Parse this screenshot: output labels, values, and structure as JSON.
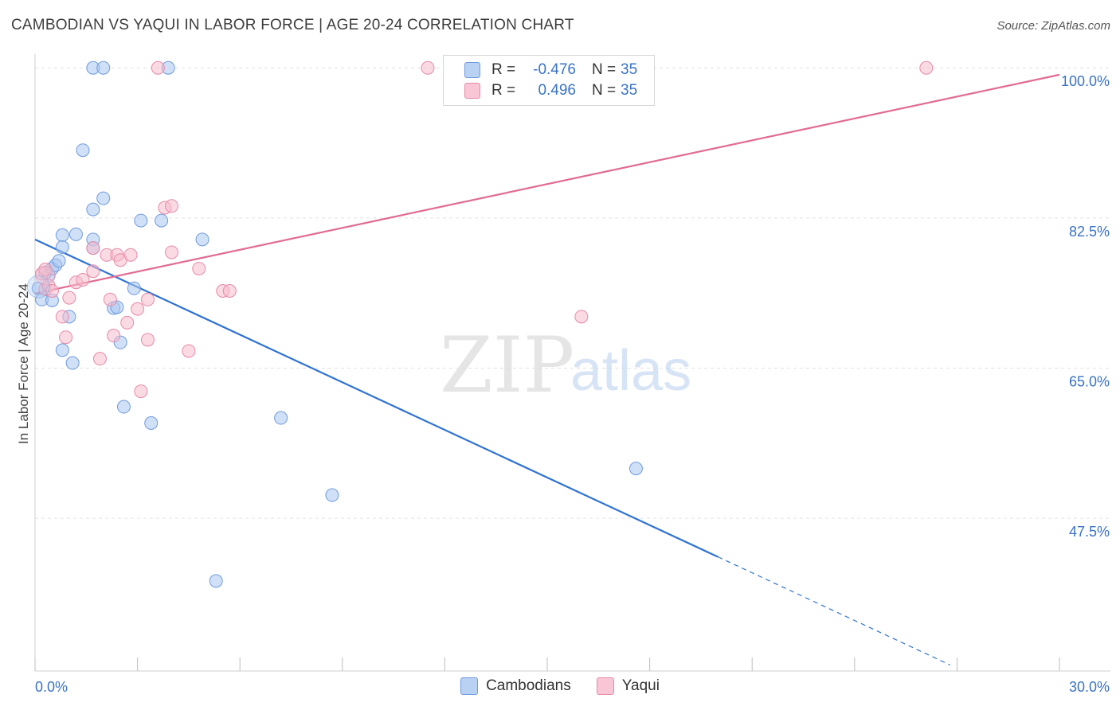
{
  "title": "CAMBODIAN VS YAQUI IN LABOR FORCE | AGE 20-24 CORRELATION CHART",
  "source": "Source: ZipAtlas.com",
  "watermark": {
    "zip": "ZIP",
    "atlas": "atlas"
  },
  "colors": {
    "blue": "#3a73c6",
    "blue_fill": "#aac6ef",
    "blue_line": "#2f72d3",
    "pink": "#e26b94",
    "pink_fill": "#f6bccc",
    "grid": "#e2e2e2",
    "axis_text": "#3a73c6"
  },
  "legend": {
    "rows": [
      {
        "r_label": "R =",
        "r_value": "-0.476",
        "n_label": "N =",
        "n_value": "35",
        "series": "blue"
      },
      {
        "r_label": "R =",
        "r_value": "0.496",
        "n_label": "N =",
        "n_value": "35",
        "series": "pink"
      }
    ]
  },
  "bottom_legend": [
    "Cambodians",
    "Yaqui"
  ],
  "chart_data": {
    "type": "scatter",
    "title": "CAMBODIAN VS YAQUI IN LABOR FORCE | AGE 20-24 CORRELATION CHART",
    "ylabel": "In Labor Force | Age 20-24",
    "xlabel": "",
    "xlim": [
      0,
      30
    ],
    "ylim": [
      29.7,
      101.6
    ],
    "x_tick_labels": [
      {
        "x": 0,
        "label": "0.0%"
      },
      {
        "x": 30,
        "label": "30.0%"
      }
    ],
    "y_tick_labels": [
      {
        "y": 100,
        "label": "100.0%"
      },
      {
        "y": 82.5,
        "label": "82.5%"
      },
      {
        "y": 65,
        "label": "65.0%"
      },
      {
        "y": 47.5,
        "label": "47.5%"
      }
    ],
    "grid": true,
    "legend_position": "top-center",
    "series": [
      {
        "name": "Cambodians",
        "color": "#3a73c6",
        "r": -0.476,
        "n": 35,
        "trend": {
          "x0": 0,
          "y0": 80.0,
          "x1": 20.0,
          "y1": 43.0,
          "dashed_to_x": 26.8,
          "dashed_to_y": 30.4
        },
        "points": [
          [
            0.1,
            74.3
          ],
          [
            0.2,
            73.0
          ],
          [
            0.3,
            76.1
          ],
          [
            0.4,
            75.8
          ],
          [
            0.5,
            72.9
          ],
          [
            0.5,
            76.6
          ],
          [
            0.6,
            77.0
          ],
          [
            0.7,
            77.5
          ],
          [
            0.8,
            80.5
          ],
          [
            0.8,
            79.1
          ],
          [
            0.8,
            67.1
          ],
          [
            1.0,
            71.0
          ],
          [
            1.1,
            65.6
          ],
          [
            1.2,
            80.6
          ],
          [
            1.4,
            90.4
          ],
          [
            1.7,
            80.0
          ],
          [
            1.7,
            79.0
          ],
          [
            1.7,
            83.5
          ],
          [
            1.7,
            100.0
          ],
          [
            2.0,
            84.8
          ],
          [
            2.0,
            100.0
          ],
          [
            2.3,
            72.0
          ],
          [
            2.4,
            72.1
          ],
          [
            2.5,
            68.0
          ],
          [
            2.6,
            60.5
          ],
          [
            2.9,
            74.3
          ],
          [
            3.1,
            82.2
          ],
          [
            3.4,
            58.6
          ],
          [
            3.7,
            82.2
          ],
          [
            3.9,
            100.0
          ],
          [
            4.9,
            80.0
          ],
          [
            5.3,
            40.2
          ],
          [
            7.2,
            59.2
          ],
          [
            8.7,
            50.2
          ],
          [
            17.6,
            53.3
          ]
        ]
      },
      {
        "name": "Yaqui",
        "color": "#e26b94",
        "r": 0.496,
        "n": 35,
        "trend": {
          "x0": 0,
          "y0": 73.7,
          "x1": 30.0,
          "y1": 99.2
        },
        "points": [
          [
            0.2,
            76.0
          ],
          [
            0.3,
            76.5
          ],
          [
            0.3,
            74.2
          ],
          [
            0.4,
            74.6
          ],
          [
            0.5,
            74.0
          ],
          [
            0.8,
            71.0
          ],
          [
            0.9,
            68.6
          ],
          [
            1.0,
            73.2
          ],
          [
            1.2,
            75.0
          ],
          [
            1.4,
            75.3
          ],
          [
            1.7,
            79.0
          ],
          [
            1.7,
            76.3
          ],
          [
            1.9,
            66.1
          ],
          [
            2.1,
            78.2
          ],
          [
            2.2,
            73.0
          ],
          [
            2.3,
            68.8
          ],
          [
            2.4,
            78.2
          ],
          [
            2.5,
            77.6
          ],
          [
            2.7,
            70.3
          ],
          [
            2.8,
            78.2
          ],
          [
            3.0,
            71.9
          ],
          [
            3.1,
            62.3
          ],
          [
            3.3,
            73.0
          ],
          [
            3.3,
            68.3
          ],
          [
            3.6,
            100.0
          ],
          [
            3.8,
            83.7
          ],
          [
            4.0,
            83.9
          ],
          [
            4.0,
            78.5
          ],
          [
            4.5,
            67.0
          ],
          [
            4.8,
            76.6
          ],
          [
            5.5,
            74.0
          ],
          [
            5.7,
            74.0
          ],
          [
            11.5,
            100.0
          ],
          [
            16.0,
            71.0
          ],
          [
            26.1,
            100.0
          ]
        ]
      }
    ]
  }
}
